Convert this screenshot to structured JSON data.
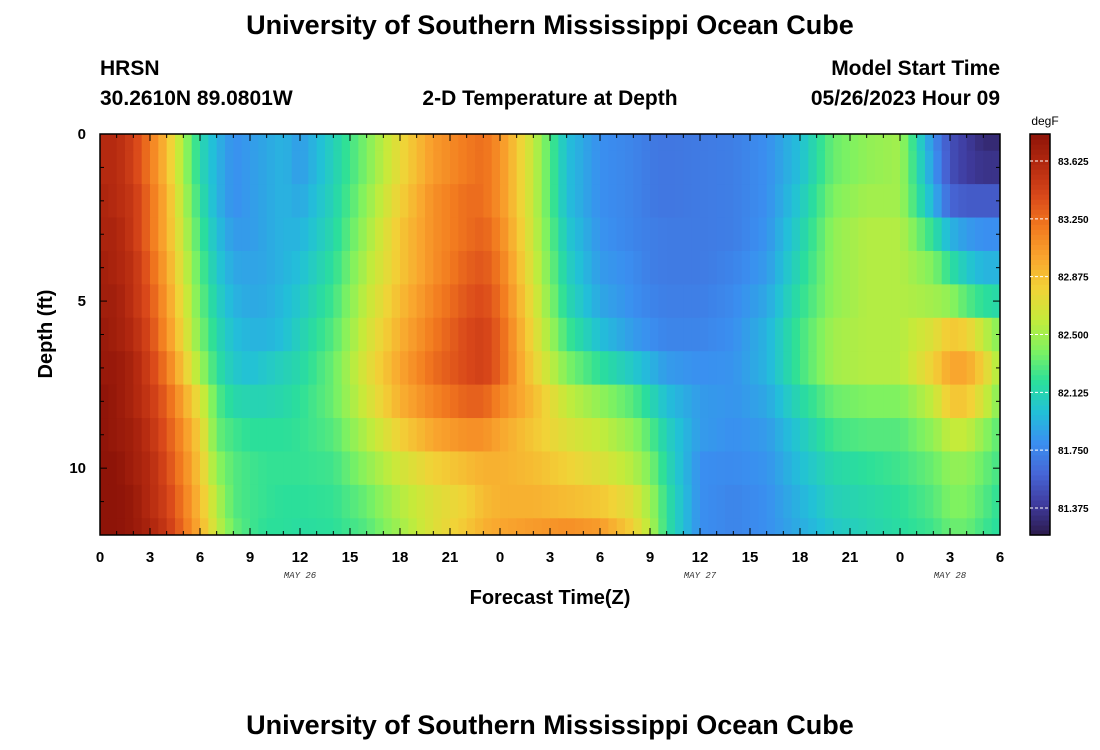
{
  "page": {
    "title": "University of Southern Mississippi Ocean Cube",
    "footer_title": "University of Southern Mississippi Ocean Cube"
  },
  "header": {
    "station": "HRSN",
    "coords": "30.2610N  89.0801W",
    "plot_name": "2-D Temperature at Depth",
    "model_start_label": "Model Start Time",
    "model_start_value": "05/26/2023 Hour 09"
  },
  "chart_data": {
    "type": "heatmap",
    "xlabel": "Forecast Time(Z)",
    "ylabel": "Depth (ft)",
    "x_hours": [
      0,
      3,
      6,
      9,
      12,
      15,
      18,
      21,
      24,
      27,
      30,
      33,
      36,
      39,
      42,
      45,
      48,
      51,
      54
    ],
    "x_tick_labels": [
      "0",
      "3",
      "6",
      "9",
      "12",
      "15",
      "18",
      "21",
      "0",
      "3",
      "6",
      "9",
      "12",
      "15",
      "18",
      "21",
      "0",
      "3",
      "6"
    ],
    "x_range_hours": [
      0,
      54
    ],
    "date_labels": [
      {
        "text": "MAY 26",
        "hour": 12
      },
      {
        "text": "MAY 27",
        "hour": 36
      },
      {
        "text": "MAY 28",
        "hour": 51
      }
    ],
    "y_ticks": [
      0,
      5,
      10
    ],
    "y_tick_labels": [
      "0",
      "5",
      "10"
    ],
    "y_range": [
      0,
      12
    ],
    "y_inverted": true,
    "colorbar": {
      "unit": "degF",
      "range": [
        81.2,
        83.8
      ],
      "ticks": [
        83.625,
        83.25,
        82.875,
        82.5,
        82.125,
        81.75,
        81.375
      ],
      "tick_labels": [
        "83.625",
        "83.250",
        "82.875",
        "82.500",
        "82.125",
        "81.750",
        "81.375"
      ],
      "colors": [
        "#2b1a4a",
        "#3f3b9e",
        "#4666d6",
        "#3a8ff0",
        "#22c0d8",
        "#2bdf9a",
        "#7ff260",
        "#c5eb3a",
        "#f2d237",
        "#f9a62e",
        "#f27a1f",
        "#d9481a",
        "#b52a10",
        "#8e1408"
      ]
    },
    "depth_bins": [
      0,
      1,
      2,
      3,
      4,
      5,
      6,
      7,
      8,
      9,
      10,
      11,
      12
    ],
    "time_knots_hours": [
      0,
      1,
      2,
      3,
      4,
      5,
      6,
      7,
      8,
      9,
      10,
      11,
      12,
      14,
      16,
      18,
      20,
      22,
      23,
      24,
      26,
      28,
      30,
      32,
      33,
      34,
      36,
      38,
      40,
      42,
      44,
      46,
      48,
      50,
      51,
      52,
      53,
      54
    ],
    "values_degF": [
      [
        83.6,
        83.6,
        83.45,
        83.2,
        82.9,
        82.5,
        82.15,
        81.95,
        81.8,
        81.85,
        81.9,
        81.95,
        81.85,
        82.1,
        82.4,
        82.75,
        83.05,
        83.2,
        83.25,
        83.1,
        82.6,
        82.0,
        81.8,
        81.75,
        81.7,
        81.68,
        81.7,
        81.72,
        81.8,
        82.0,
        82.35,
        82.45,
        82.5,
        81.8,
        81.5,
        81.4,
        81.3,
        81.3
      ],
      [
        83.6,
        83.6,
        83.45,
        83.2,
        82.9,
        82.5,
        82.15,
        81.95,
        81.8,
        81.85,
        81.9,
        81.95,
        81.85,
        82.1,
        82.4,
        82.75,
        83.05,
        83.2,
        83.25,
        83.1,
        82.6,
        82.0,
        81.8,
        81.75,
        81.7,
        81.68,
        81.7,
        81.72,
        81.8,
        82.0,
        82.35,
        82.45,
        82.5,
        81.85,
        81.5,
        81.4,
        81.35,
        81.35
      ],
      [
        83.65,
        83.6,
        83.5,
        83.25,
        82.95,
        82.55,
        82.2,
        81.95,
        81.8,
        81.85,
        81.9,
        81.95,
        81.9,
        82.12,
        82.45,
        82.8,
        83.1,
        83.25,
        83.25,
        83.1,
        82.6,
        82.0,
        81.8,
        81.75,
        81.7,
        81.68,
        81.7,
        81.72,
        81.8,
        82.05,
        82.4,
        82.5,
        82.5,
        81.95,
        81.6,
        81.55,
        81.55,
        81.55
      ],
      [
        83.65,
        83.65,
        83.5,
        83.25,
        82.95,
        82.6,
        82.25,
        82.0,
        81.85,
        81.85,
        81.9,
        81.95,
        81.95,
        82.15,
        82.5,
        82.85,
        83.1,
        83.25,
        83.3,
        83.15,
        82.62,
        82.05,
        81.82,
        81.75,
        81.72,
        81.7,
        81.7,
        81.72,
        81.82,
        82.1,
        82.45,
        82.55,
        82.55,
        82.2,
        81.95,
        81.85,
        81.8,
        81.8
      ],
      [
        83.7,
        83.65,
        83.55,
        83.3,
        83.0,
        82.65,
        82.3,
        82.05,
        81.9,
        81.88,
        81.9,
        81.95,
        82.0,
        82.2,
        82.55,
        82.85,
        83.1,
        83.3,
        83.35,
        83.2,
        82.65,
        82.1,
        81.85,
        81.78,
        81.72,
        81.7,
        81.7,
        81.75,
        81.85,
        82.15,
        82.45,
        82.55,
        82.55,
        82.4,
        82.2,
        82.05,
        81.95,
        81.95
      ],
      [
        83.7,
        83.7,
        83.55,
        83.35,
        83.05,
        82.7,
        82.35,
        82.1,
        81.95,
        81.9,
        81.92,
        81.98,
        82.05,
        82.25,
        82.6,
        82.9,
        83.15,
        83.35,
        83.4,
        83.25,
        82.7,
        82.15,
        81.9,
        81.8,
        81.75,
        81.72,
        81.72,
        81.78,
        81.9,
        82.2,
        82.45,
        82.55,
        82.55,
        82.5,
        82.45,
        82.3,
        82.2,
        82.15
      ],
      [
        83.75,
        83.7,
        83.6,
        83.4,
        83.1,
        82.75,
        82.4,
        82.15,
        82.0,
        81.95,
        81.95,
        82.0,
        82.1,
        82.3,
        82.65,
        82.95,
        83.2,
        83.4,
        83.45,
        83.3,
        82.75,
        82.25,
        82.0,
        81.85,
        81.8,
        81.75,
        81.75,
        81.8,
        81.95,
        82.25,
        82.5,
        82.55,
        82.55,
        82.7,
        82.85,
        82.8,
        82.6,
        82.4
      ],
      [
        83.75,
        83.75,
        83.65,
        83.45,
        83.2,
        82.85,
        82.5,
        82.2,
        82.05,
        82.0,
        82.05,
        82.1,
        82.15,
        82.35,
        82.7,
        83.0,
        83.25,
        83.4,
        83.45,
        83.3,
        82.8,
        82.4,
        82.2,
        82.05,
        81.95,
        81.85,
        81.8,
        81.82,
        81.95,
        82.25,
        82.5,
        82.55,
        82.55,
        82.8,
        83.0,
        83.0,
        82.8,
        82.5
      ],
      [
        83.8,
        83.75,
        83.65,
        83.5,
        83.3,
        83.0,
        82.7,
        82.3,
        82.15,
        82.12,
        82.12,
        82.15,
        82.2,
        82.35,
        82.65,
        82.95,
        83.15,
        83.3,
        83.3,
        83.15,
        82.9,
        82.6,
        82.45,
        82.3,
        82.15,
        82.0,
        81.85,
        81.82,
        81.9,
        82.15,
        82.35,
        82.4,
        82.4,
        82.6,
        82.85,
        82.85,
        82.65,
        82.4
      ],
      [
        83.8,
        83.75,
        83.7,
        83.55,
        83.35,
        83.1,
        82.8,
        82.35,
        82.25,
        82.2,
        82.2,
        82.2,
        82.22,
        82.3,
        82.55,
        82.8,
        83.0,
        83.1,
        83.1,
        83.0,
        82.85,
        82.7,
        82.6,
        82.45,
        82.3,
        82.1,
        81.85,
        81.8,
        81.85,
        82.05,
        82.25,
        82.3,
        82.3,
        82.45,
        82.6,
        82.6,
        82.45,
        82.3
      ],
      [
        83.8,
        83.8,
        83.7,
        83.6,
        83.4,
        83.15,
        82.85,
        82.45,
        82.3,
        82.25,
        82.22,
        82.22,
        82.22,
        82.25,
        82.45,
        82.65,
        82.8,
        82.9,
        82.95,
        82.95,
        82.9,
        82.8,
        82.7,
        82.55,
        82.4,
        82.15,
        81.8,
        81.78,
        81.82,
        82.0,
        82.15,
        82.2,
        82.25,
        82.35,
        82.45,
        82.45,
        82.35,
        82.25
      ],
      [
        83.8,
        83.8,
        83.75,
        83.6,
        83.45,
        83.2,
        82.9,
        82.55,
        82.3,
        82.25,
        82.22,
        82.2,
        82.2,
        82.22,
        82.35,
        82.55,
        82.7,
        82.8,
        82.9,
        82.95,
        82.95,
        82.9,
        82.85,
        82.7,
        82.5,
        82.2,
        81.8,
        81.75,
        81.8,
        81.95,
        82.1,
        82.15,
        82.2,
        82.3,
        82.4,
        82.4,
        82.3,
        82.2
      ],
      [
        83.8,
        83.8,
        83.75,
        83.65,
        83.5,
        83.25,
        82.95,
        82.6,
        82.35,
        82.25,
        82.2,
        82.2,
        82.18,
        82.2,
        82.3,
        82.5,
        82.7,
        82.85,
        82.95,
        83.0,
        83.05,
        83.1,
        83.05,
        82.8,
        82.55,
        82.2,
        81.8,
        81.75,
        81.8,
        81.92,
        82.05,
        82.12,
        82.18,
        82.25,
        82.35,
        82.35,
        82.25,
        82.18
      ]
    ]
  }
}
